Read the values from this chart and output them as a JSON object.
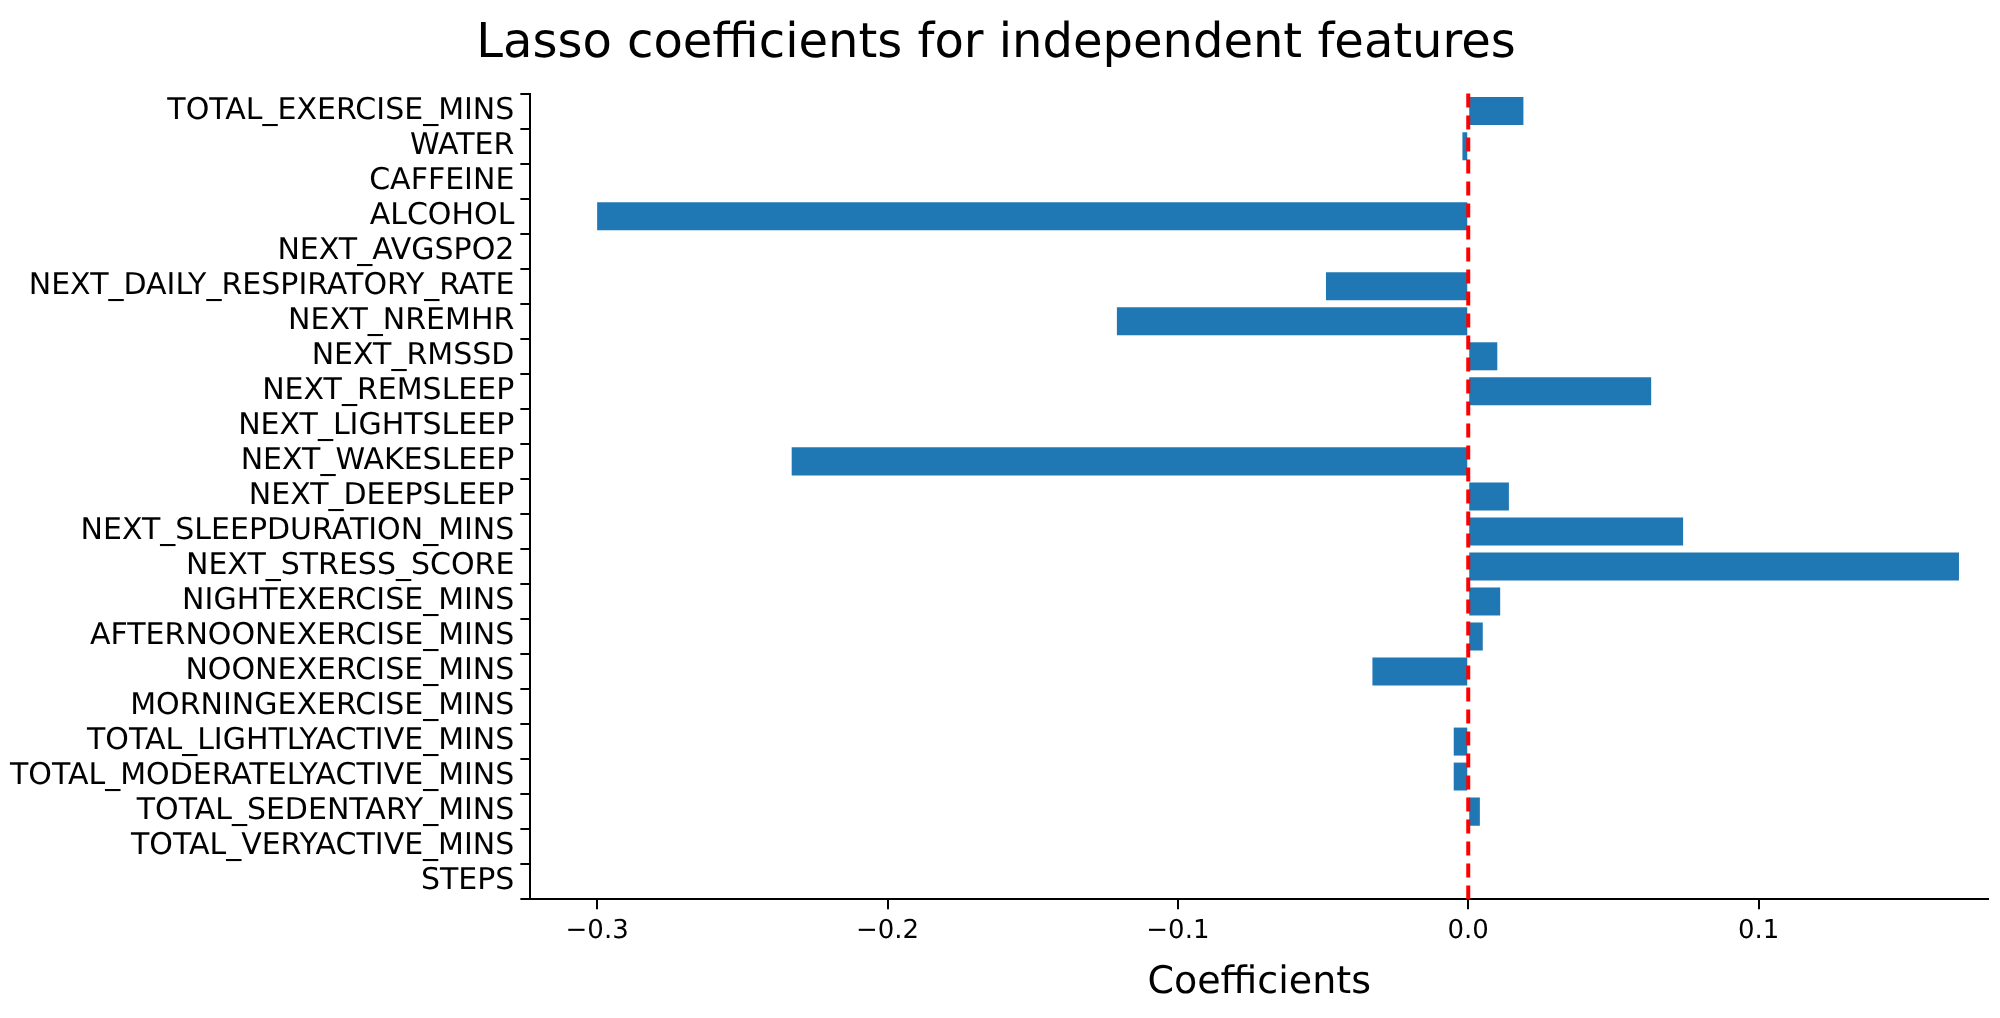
{
  "chart_data": {
    "type": "bar",
    "orientation": "horizontal",
    "title": "Lasso coefficients for independent features",
    "xlabel": "Coefficients",
    "categories": [
      "TOTAL_EXERCISE_MINS",
      "WATER",
      "CAFFEINE",
      "ALCOHOL",
      "NEXT_AVGSPO2",
      "NEXT_DAILY_RESPIRATORY_RATE",
      "NEXT_NREMHR",
      "NEXT_RMSSD",
      "NEXT_REMSLEEP",
      "NEXT_LIGHTSLEEP",
      "NEXT_WAKESLEEP",
      "NEXT_DEEPSLEEP",
      "NEXT_SLEEPDURATION_MINS",
      "NEXT_STRESS_SCORE",
      "NIGHTEXERCISE_MINS",
      "AFTERNOONEXERCISE_MINS",
      "NOONEXERCISE_MINS",
      "MORNINGEXERCISE_MINS",
      "TOTAL_LIGHTLYACTIVE_MINS",
      "TOTAL_MODERATELYACTIVE_MINS",
      "TOTAL_SEDENTARY_MINS",
      "TOTAL_VERYACTIVE_MINS",
      "STEPS"
    ],
    "values": [
      0.019,
      -0.002,
      0,
      -0.3,
      0,
      -0.049,
      -0.121,
      0.01,
      0.063,
      0,
      -0.233,
      0.014,
      0.074,
      0.169,
      0.011,
      0.005,
      -0.033,
      0,
      -0.005,
      -0.005,
      0.004,
      0,
      0
    ],
    "color": "#1f77b4",
    "xlim": [
      -0.323,
      0.179
    ],
    "xticks": [
      {
        "value": -0.3,
        "label": "−0.3"
      },
      {
        "value": -0.2,
        "label": "−0.2"
      },
      {
        "value": -0.1,
        "label": "−0.1"
      },
      {
        "value": 0,
        "label": "0.0"
      },
      {
        "value": 0.1,
        "label": "0.1"
      }
    ],
    "ref_lines": [
      {
        "axis": "x",
        "value": 0,
        "color": "#ff0000",
        "line_style": "dashed"
      }
    ]
  }
}
